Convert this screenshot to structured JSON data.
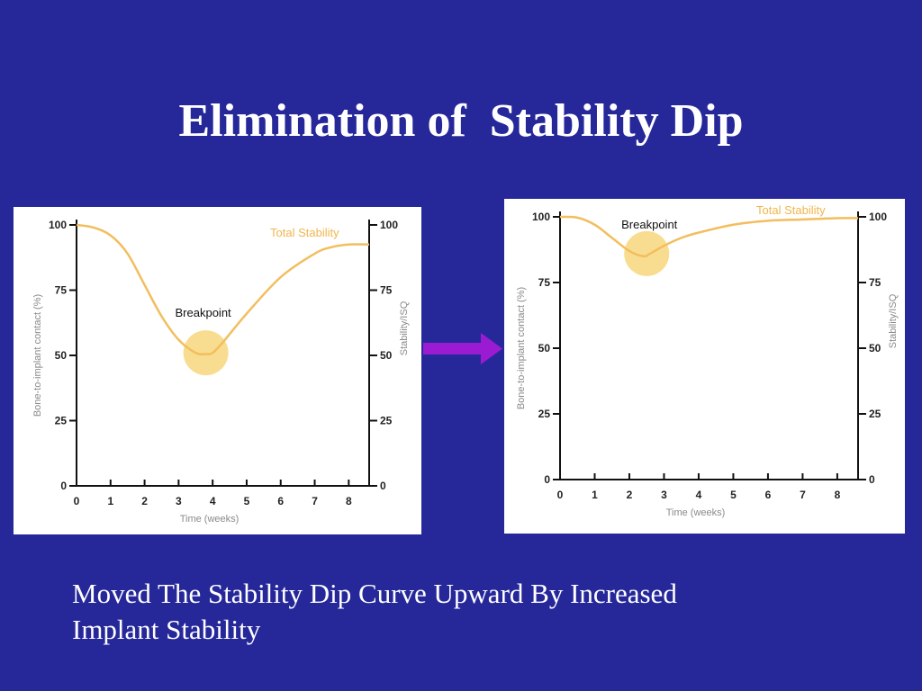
{
  "slide": {
    "title": "Elimination of  Stability Dip",
    "caption_lines": [
      "Moved The Stability Dip Curve Upward By Increased",
      "Implant Stability"
    ]
  },
  "colors": {
    "background": "#26289a",
    "curve": "#f2be5e",
    "breakpoint_circle": "#f7d77c",
    "arrow": "#9a1bd2",
    "panel": "#ffffff"
  },
  "chart_data": [
    {
      "type": "line",
      "xlabel": "Time (weeks)",
      "ylabel": "Bone-to-implant contact (%)",
      "ylabel_right": "Stability/ISQ",
      "x_ticks": [
        "0",
        "1",
        "2",
        "3",
        "4",
        "5",
        "6",
        "7",
        "8"
      ],
      "y_ticks": [
        "0",
        "25",
        "50",
        "75",
        "100"
      ],
      "y_ticks_right": [
        "0",
        "25",
        "50",
        "75",
        "100"
      ],
      "xlim": [
        0,
        8.6
      ],
      "ylim": [
        0,
        100
      ],
      "grid": false,
      "series": [
        {
          "name": "Total Stability",
          "x": [
            0,
            0.5,
            1,
            1.5,
            2,
            2.5,
            3,
            3.5,
            3.8,
            4,
            4.3,
            5,
            6,
            7,
            7.5,
            8,
            8.6
          ],
          "y": [
            100,
            99,
            96,
            89,
            77,
            65,
            56,
            51,
            50.5,
            51,
            55,
            66,
            80,
            89,
            91.5,
            92.5,
            92.5
          ]
        }
      ],
      "annotations": [
        {
          "text": "Breakpoint",
          "x": 3.8,
          "y": 51
        }
      ]
    },
    {
      "type": "line",
      "xlabel": "Time (weeks)",
      "ylabel": "Bone-to-implant contact (%)",
      "ylabel_right": "Stability/ISQ",
      "x_ticks": [
        "0",
        "1",
        "2",
        "3",
        "4",
        "5",
        "6",
        "7",
        "8"
      ],
      "y_ticks": [
        "0",
        "25",
        "50",
        "75",
        "100"
      ],
      "y_ticks_right": [
        "0",
        "25",
        "50",
        "75",
        "100"
      ],
      "xlim": [
        0,
        8.6
      ],
      "ylim": [
        0,
        100
      ],
      "grid": false,
      "series": [
        {
          "name": "Total Stability",
          "x": [
            0,
            0.5,
            1,
            1.5,
            2,
            2.4,
            2.6,
            3,
            3.5,
            4,
            5,
            6,
            7,
            8,
            8.6
          ],
          "y": [
            100,
            99.7,
            97,
            92,
            87,
            85,
            86,
            89,
            92,
            94,
            97,
            98.5,
            99,
            99.5,
            99.5
          ]
        }
      ],
      "annotations": [
        {
          "text": "Breakpoint",
          "x": 2.5,
          "y": 86
        }
      ]
    }
  ]
}
